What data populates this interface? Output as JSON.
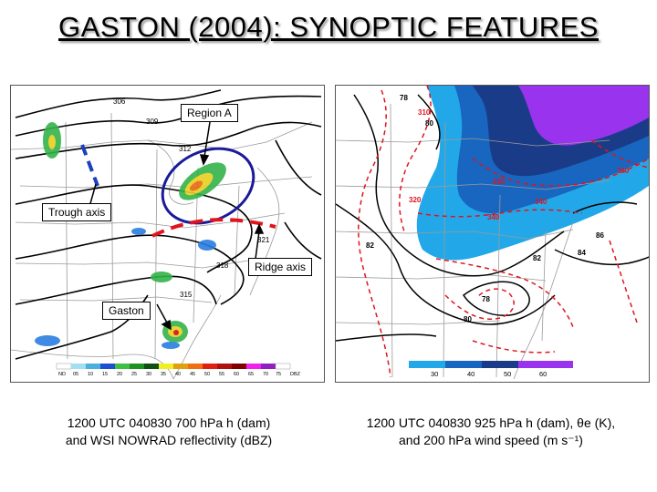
{
  "title": "GASTON (2004):  SYNOPTIC FEATURES",
  "left_panel": {
    "contour_labels": [
      "306",
      "309",
      "312",
      "321",
      "318",
      "315"
    ],
    "callouts": {
      "region_a": "Region A",
      "trough_axis": "Trough axis",
      "ridge_axis": "Ridge axis",
      "gaston": "Gaston"
    },
    "legend": [
      "ND",
      "05",
      "10",
      "15",
      "20",
      "25",
      "30",
      "35",
      "40",
      "45",
      "50",
      "55",
      "60",
      "65",
      "70",
      "75",
      "DBZ"
    ],
    "caption": {
      "line1": "1200 UTC 040830 700 hPa h (dam)",
      "line2": "and WSI NOWRAD reflectivity (dBZ)"
    }
  },
  "right_panel": {
    "height_labels": [
      "78",
      "80",
      "82",
      "82",
      "84",
      "86",
      "78",
      "80"
    ],
    "theta_labels": [
      "310",
      "320",
      "330",
      "340",
      "340",
      "340"
    ],
    "wind_colorbar": [
      "30",
      "40",
      "50",
      "60"
    ],
    "caption": {
      "line1": "1200 UTC 040830 925 hPa h (dam), θe (K),",
      "line2": "and 200 hPa wind speed (m s⁻¹)"
    }
  },
  "colors": {
    "trough": "#1c3fbf",
    "ridge": "#e0141e",
    "region_circle": "#1a1a9a",
    "jet_30": "#22a8e8",
    "jet_40": "#1866c0",
    "jet_50": "#1a3c88",
    "jet_60": "#9933ee"
  }
}
